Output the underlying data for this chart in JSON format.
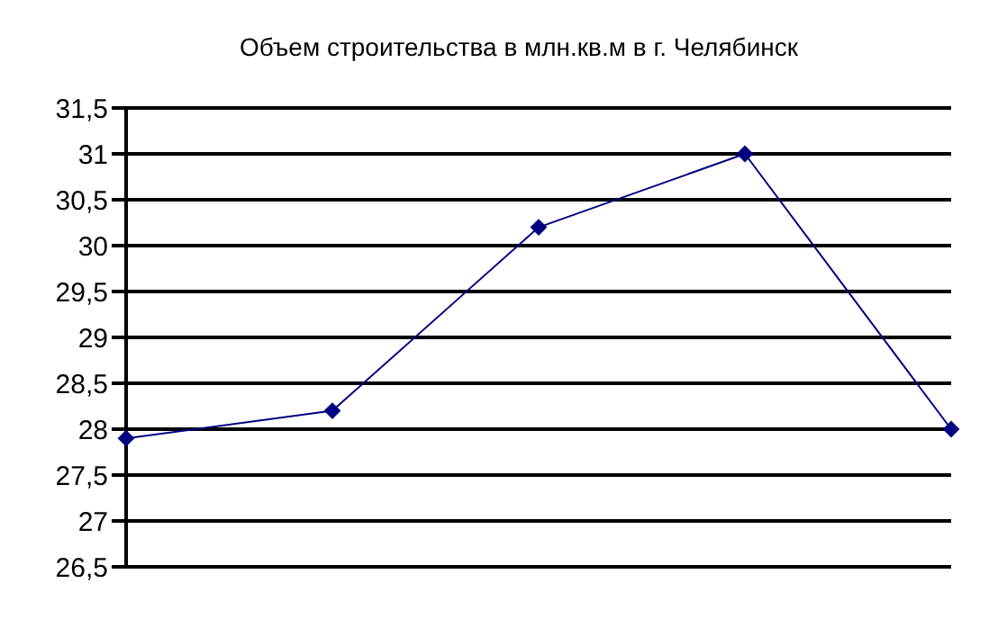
{
  "chart_data": {
    "type": "line",
    "title": "Объем строительства в млн.кв.м в г. Челябинск",
    "categories": [
      null,
      null,
      null,
      null,
      null
    ],
    "series": [
      {
        "color": "#000080",
        "values": [
          27.9,
          28.2,
          30.2,
          31.0,
          28.0
        ]
      }
    ],
    "ylim": [
      26.5,
      31.5
    ],
    "yticks": [
      {
        "value": 26.5,
        "label": "26,5"
      },
      27,
      {
        "value": 27.5,
        "label": "27,5"
      },
      28,
      {
        "value": 28.5,
        "label": "28,5"
      },
      29,
      {
        "value": 29.5,
        "label": "29,5"
      },
      30,
      {
        "value": 30.5,
        "label": "30,5"
      },
      31,
      {
        "value": 31.5,
        "label": "31,5"
      }
    ],
    "grid": "y",
    "marker": "diamond",
    "line_style": "solid",
    "legend": false,
    "tick_labels": "y"
  }
}
